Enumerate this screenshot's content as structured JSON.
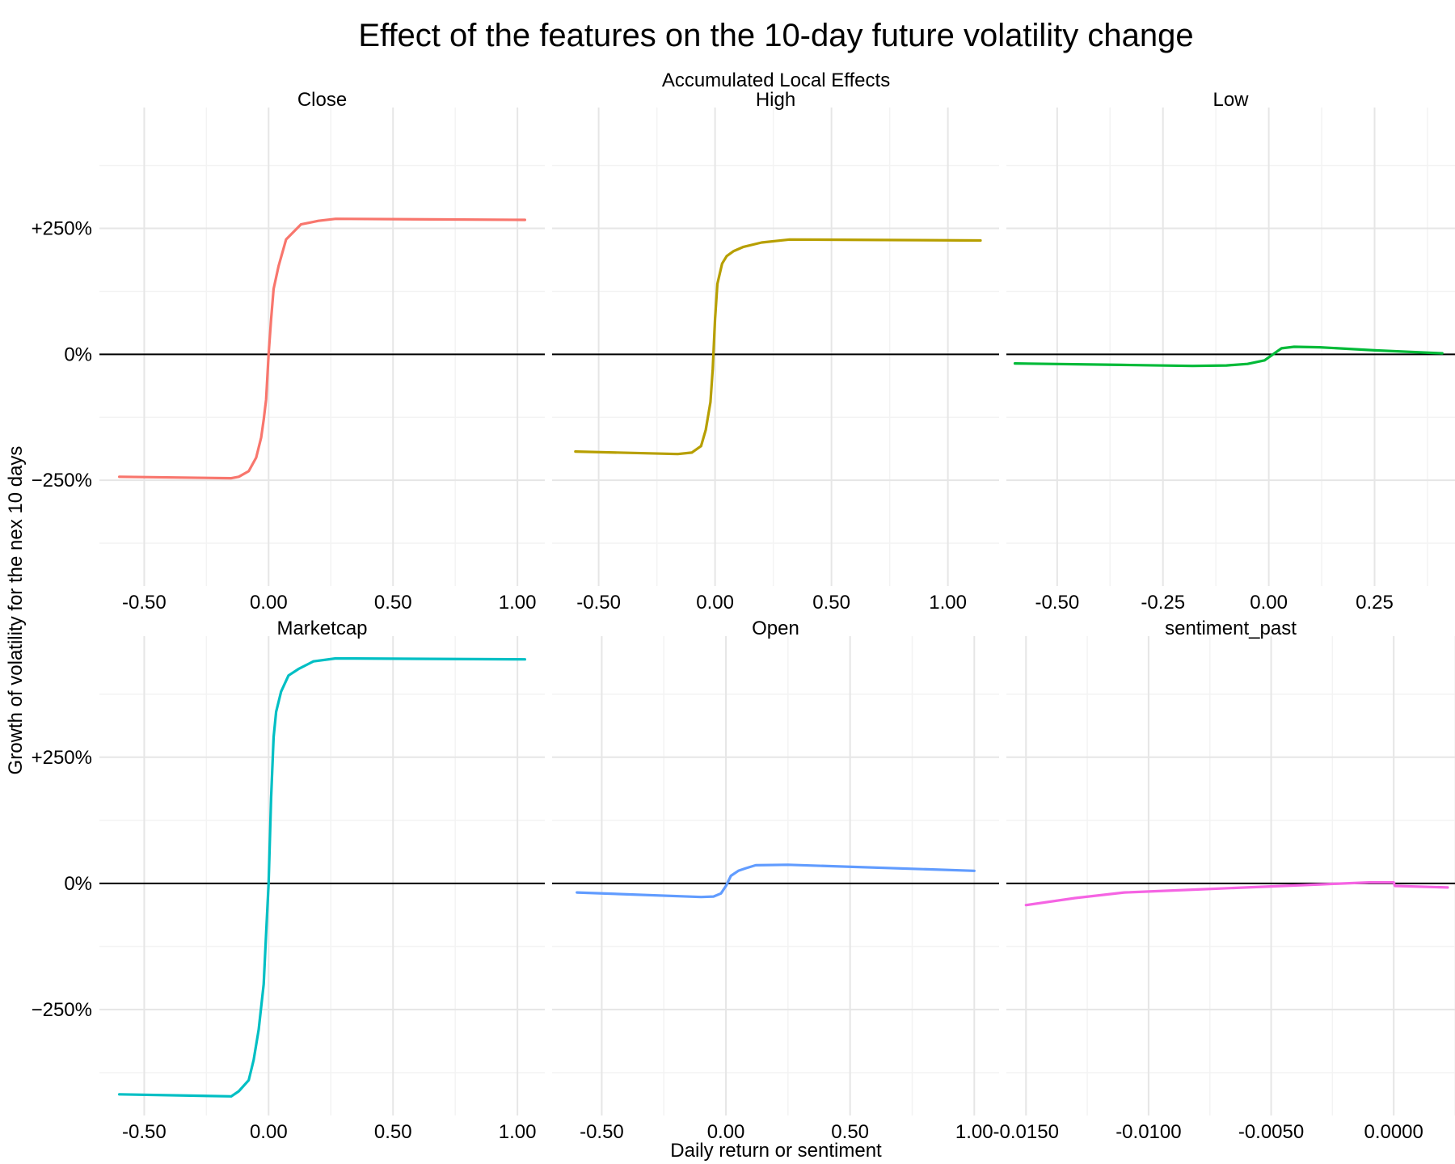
{
  "title": "Effect of the features on the 10-day future volatility change",
  "subtitle": "Accumulated Local Effects",
  "xlabel": "Daily return or sentiment",
  "ylabel": "Growth of volatility for the nex 10 days",
  "chart_data": {
    "type": "line",
    "layout": "facet-grid 2x3",
    "y_shared": true,
    "ylim": [
      -460,
      490
    ],
    "y_ticks": [
      -250,
      0,
      250
    ],
    "y_tick_labels": [
      "−250%",
      "0%",
      "+250%"
    ],
    "grid": true,
    "legend": "none",
    "panels": [
      {
        "name": "Close",
        "color": "#F8766D",
        "xlim": [
          -0.68,
          1.11
        ],
        "x_ticks": [
          -0.5,
          0,
          0.5,
          1
        ],
        "x_tick_labels": [
          "-0.50",
          "0.00",
          "0.50",
          "1.00"
        ],
        "x": [
          -0.6,
          -0.15,
          -0.12,
          -0.08,
          -0.05,
          -0.03,
          -0.02,
          -0.01,
          0,
          0.01,
          0.02,
          0.04,
          0.07,
          0.13,
          0.2,
          0.27,
          1.03
        ],
        "y": [
          -243,
          -246,
          -243,
          -232,
          -205,
          -165,
          -130,
          -90,
          0,
          70,
          130,
          175,
          228,
          258,
          265,
          269,
          267
        ]
      },
      {
        "name": "High",
        "color": "#B79F00",
        "xlim": [
          -0.7,
          1.22
        ],
        "x_ticks": [
          -0.5,
          0,
          0.5,
          1
        ],
        "x_tick_labels": [
          "-0.50",
          "0.00",
          "0.50",
          "1.00"
        ],
        "x": [
          -0.6,
          -0.16,
          -0.1,
          -0.06,
          -0.04,
          -0.02,
          -0.01,
          0,
          0.01,
          0.03,
          0.05,
          0.08,
          0.12,
          0.2,
          0.32,
          1.14
        ],
        "y": [
          -193,
          -198,
          -195,
          -182,
          -150,
          -95,
          -30,
          70,
          140,
          180,
          195,
          205,
          213,
          222,
          228,
          226
        ]
      },
      {
        "name": "Low",
        "color": "#00BA38",
        "xlim": [
          -0.62,
          0.44
        ],
        "x_ticks": [
          -0.5,
          -0.25,
          0,
          0.25
        ],
        "x_tick_labels": [
          "-0.50",
          "-0.25",
          "0.00",
          "0.25"
        ],
        "x": [
          -0.6,
          -0.35,
          -0.18,
          -0.1,
          -0.05,
          -0.01,
          0.01,
          0.03,
          0.06,
          0.12,
          0.25,
          0.41
        ],
        "y": [
          -18,
          -21,
          -23,
          -22,
          -19,
          -12,
          0,
          12,
          15,
          14,
          8,
          2
        ]
      },
      {
        "name": "Marketcap",
        "color": "#00BFC4",
        "xlim": [
          -0.68,
          1.11
        ],
        "x_ticks": [
          -0.5,
          0,
          0.5,
          1
        ],
        "x_tick_labels": [
          "-0.50",
          "0.00",
          "0.50",
          "1.00"
        ],
        "x": [
          -0.6,
          -0.15,
          -0.12,
          -0.08,
          -0.06,
          -0.04,
          -0.02,
          -0.01,
          0,
          0.01,
          0.02,
          0.03,
          0.05,
          0.08,
          0.12,
          0.18,
          0.27,
          1.03
        ],
        "y": [
          -418,
          -422,
          -412,
          -390,
          -350,
          -290,
          -200,
          -100,
          0,
          170,
          290,
          340,
          380,
          412,
          425,
          440,
          446,
          444
        ]
      },
      {
        "name": "Open",
        "color": "#619CFF",
        "xlim": [
          -0.7,
          1.1
        ],
        "x_ticks": [
          -0.5,
          0,
          0.5,
          1
        ],
        "x_tick_labels": [
          "-0.50",
          "0.00",
          "0.50",
          "1.00"
        ],
        "x": [
          -0.6,
          -0.1,
          -0.05,
          -0.02,
          0,
          0.02,
          0.05,
          0.08,
          0.12,
          0.25,
          1.0
        ],
        "y": [
          -18,
          -27,
          -26,
          -20,
          -5,
          15,
          25,
          30,
          36,
          37,
          25
        ]
      },
      {
        "name": "sentiment_past",
        "color": "#F564E3",
        "xlim": [
          -0.0158,
          0.0025
        ],
        "x_ticks": [
          -0.015,
          -0.01,
          -0.005,
          0
        ],
        "x_tick_labels": [
          "-0.0150",
          "-0.0100",
          "-0.0050",
          "0.0000"
        ],
        "x": [
          -0.015,
          -0.013,
          -0.011,
          -0.008,
          -0.005,
          -0.003,
          -0.001,
          0,
          5e-05,
          0.0022
        ],
        "y": [
          -43,
          -29,
          -18,
          -12,
          -6,
          -2,
          2,
          2,
          -5,
          -8
        ]
      }
    ]
  }
}
